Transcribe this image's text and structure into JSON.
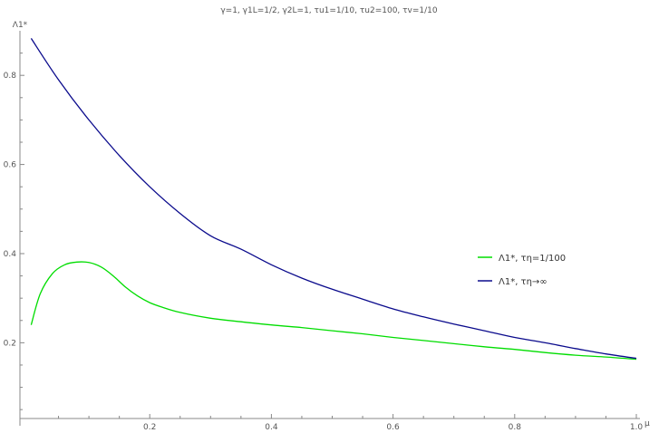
{
  "chart_data": {
    "type": "line",
    "title": "γ=1, γ1L=1/2, γ2L=1, τu1=1/10, τu2=100, τv=1/10",
    "ylabel": "Λ1*",
    "xlabel": "μ",
    "xlim": [
      0,
      1.0
    ],
    "ylim": [
      0.03,
      0.9
    ],
    "xticks": [
      0.2,
      0.4,
      0.6,
      0.8,
      1.0
    ],
    "xtick_labels": [
      "0.2",
      "0.4",
      "0.6",
      "0.8",
      "1.0"
    ],
    "yticks": [
      0.2,
      0.4,
      0.6,
      0.8
    ],
    "ytick_labels": [
      "0.2",
      "0.4",
      "0.6",
      "0.8"
    ],
    "grid": false,
    "legend_position": "right",
    "series": [
      {
        "name": "Λ1*, τη=1/100",
        "color": "#00dd00",
        "x": [
          0.005,
          0.02,
          0.04,
          0.06,
          0.08,
          0.1,
          0.12,
          0.14,
          0.16,
          0.18,
          0.2,
          0.22,
          0.25,
          0.3,
          0.35,
          0.4,
          0.45,
          0.5,
          0.55,
          0.6,
          0.65,
          0.7,
          0.75,
          0.8,
          0.85,
          0.9,
          0.95,
          1.0
        ],
        "y": [
          0.24,
          0.31,
          0.355,
          0.375,
          0.381,
          0.38,
          0.37,
          0.35,
          0.325,
          0.305,
          0.29,
          0.28,
          0.268,
          0.255,
          0.247,
          0.24,
          0.234,
          0.227,
          0.22,
          0.212,
          0.205,
          0.198,
          0.191,
          0.185,
          0.178,
          0.172,
          0.168,
          0.163
        ]
      },
      {
        "name": "Λ1*, τη→∞",
        "color": "#0a0a8c",
        "x": [
          0.005,
          0.05,
          0.1,
          0.15,
          0.2,
          0.25,
          0.3,
          0.35,
          0.4,
          0.45,
          0.5,
          0.55,
          0.6,
          0.65,
          0.7,
          0.75,
          0.8,
          0.85,
          0.9,
          0.95,
          1.0
        ],
        "y": [
          0.883,
          0.79,
          0.7,
          0.62,
          0.55,
          0.49,
          0.44,
          0.41,
          0.375,
          0.345,
          0.32,
          0.298,
          0.276,
          0.258,
          0.242,
          0.227,
          0.212,
          0.2,
          0.187,
          0.175,
          0.165
        ]
      }
    ]
  }
}
